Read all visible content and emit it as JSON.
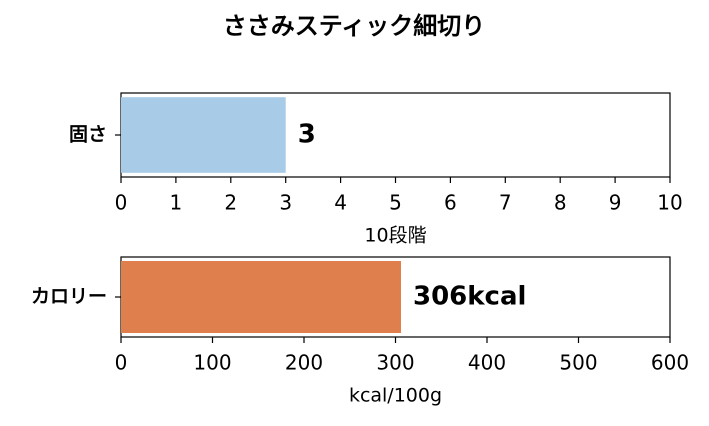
{
  "title": "ささみスティック細切り",
  "chart_data": [
    {
      "type": "barh",
      "categories": [
        "固さ"
      ],
      "values": [
        3
      ],
      "color": "#a8cbe8",
      "xlim": [
        0,
        10
      ],
      "xticks": [
        0,
        1,
        2,
        3,
        4,
        5,
        6,
        7,
        8,
        9,
        10
      ],
      "xlabel": "10段階"
    },
    {
      "type": "barh",
      "categories": [
        "カロリー"
      ],
      "values": [
        306
      ],
      "value_labels": [
        "306kcal"
      ],
      "color": "#e07f4e",
      "xlim": [
        0,
        600
      ],
      "xticks": [
        0,
        100,
        200,
        300,
        400,
        500,
        600
      ],
      "xlabel": "kcal/100g"
    }
  ]
}
